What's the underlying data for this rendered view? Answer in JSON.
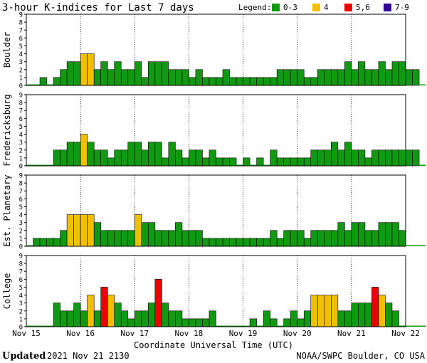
{
  "chart_data": {
    "type": "bar",
    "title": "3-hour K-indices for Last 7 days",
    "legend_title": "Legend:",
    "legend": [
      {
        "label": "0-3",
        "color": "#119911",
        "min": 0,
        "max": 3
      },
      {
        "label": "4",
        "color": "#f0c000",
        "min": 4,
        "max": 4
      },
      {
        "label": "5,6",
        "color": "#ee0000",
        "min": 5,
        "max": 6
      },
      {
        "label": "7-9",
        "color": "#330099",
        "min": 7,
        "max": 9
      }
    ],
    "xlabel": "Coordinate Universal Time (UTC)",
    "x_ticks": [
      "Nov 15",
      "Nov 16",
      "Nov 17",
      "Nov 18",
      "Nov 19",
      "Nov 20",
      "Nov 21",
      "Nov 22"
    ],
    "y_ticks": [
      "0",
      "1",
      "2",
      "3",
      "4",
      "5",
      "6",
      "7",
      "8",
      "9"
    ],
    "ylim": [
      0,
      9
    ],
    "periods_per_day": 8,
    "days": 7,
    "series": [
      {
        "name": "Boulder",
        "values": [
          0,
          0,
          1,
          0,
          1,
          2,
          3,
          3,
          4,
          4,
          2,
          3,
          2,
          3,
          2,
          2,
          3,
          1,
          3,
          3,
          3,
          2,
          2,
          2,
          1,
          2,
          1,
          1,
          1,
          2,
          1,
          1,
          1,
          1,
          1,
          1,
          1,
          2,
          2,
          2,
          2,
          1,
          1,
          2,
          2,
          2,
          2,
          3,
          2,
          3,
          2,
          2,
          3,
          2,
          3,
          3,
          2,
          2,
          0
        ]
      },
      {
        "name": "Fredericksburg",
        "values": [
          0,
          0,
          0,
          0,
          2,
          2,
          3,
          3,
          4,
          3,
          2,
          2,
          1,
          2,
          2,
          3,
          3,
          2,
          3,
          3,
          1,
          3,
          2,
          1,
          2,
          2,
          1,
          2,
          1,
          1,
          1,
          0,
          1,
          0,
          1,
          0,
          2,
          1,
          1,
          1,
          1,
          1,
          2,
          2,
          2,
          3,
          2,
          3,
          2,
          2,
          1,
          2,
          2,
          2,
          2,
          2,
          2,
          2,
          0
        ]
      },
      {
        "name": "Est. Planetary",
        "values": [
          0,
          1,
          1,
          1,
          1,
          2,
          4,
          4,
          4,
          4,
          3,
          2,
          2,
          2,
          2,
          2,
          4,
          3,
          3,
          2,
          2,
          2,
          3,
          2,
          2,
          2,
          1,
          1,
          1,
          1,
          1,
          1,
          1,
          1,
          1,
          1,
          2,
          1,
          2,
          2,
          2,
          1,
          2,
          2,
          2,
          2,
          3,
          2,
          3,
          3,
          2,
          2,
          3,
          3,
          3,
          2,
          0,
          0,
          0
        ]
      },
      {
        "name": "College",
        "values": [
          0,
          0,
          0,
          0,
          3,
          2,
          2,
          3,
          2,
          4,
          2,
          5,
          4,
          3,
          2,
          1,
          2,
          2,
          3,
          6,
          3,
          2,
          2,
          1,
          1,
          1,
          1,
          2,
          0,
          0,
          0,
          0,
          0,
          1,
          0,
          2,
          1,
          0,
          1,
          2,
          1,
          2,
          4,
          4,
          4,
          4,
          2,
          2,
          3,
          3,
          3,
          5,
          4,
          3,
          2,
          0,
          0,
          0,
          0
        ]
      }
    ]
  },
  "footer": {
    "updated_label": "Updated",
    "updated_value": "2021 Nov 21 2130",
    "credit": "NOAA/SWPC Boulder, CO USA"
  }
}
